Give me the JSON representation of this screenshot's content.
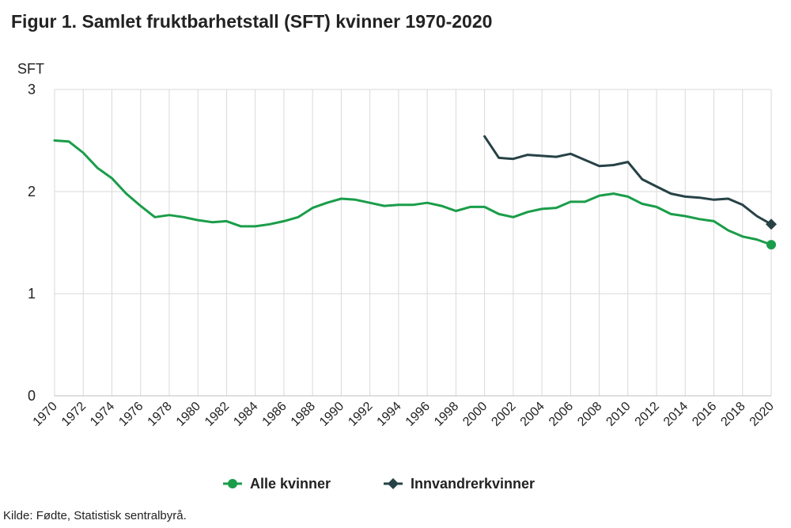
{
  "title": "Figur 1. Samlet fruktbarhetstall (SFT) kvinner 1970-2020",
  "source": "Kilde: Fødte, Statistisk sentralbyrå.",
  "colors": {
    "alle": "#1a9d49",
    "innvandrer": "#274247",
    "grid": "#d9d9d9"
  },
  "chart_data": {
    "type": "line",
    "title": "Figur 1. Samlet fruktbarhetstall (SFT) kvinner 1970-2020",
    "ylabel": "SFT",
    "xlabel": "",
    "ylim": [
      0,
      3
    ],
    "yticks": [
      0,
      1,
      2,
      3
    ],
    "xlim": [
      1970,
      2020
    ],
    "xticks": [
      1970,
      1972,
      1974,
      1976,
      1978,
      1980,
      1982,
      1984,
      1986,
      1988,
      1990,
      1992,
      1994,
      1996,
      1998,
      2000,
      2002,
      2004,
      2006,
      2008,
      2010,
      2012,
      2014,
      2016,
      2018,
      2020
    ],
    "grid": true,
    "legend": "bottom",
    "series": [
      {
        "name": "Alle kvinner",
        "color": "#1a9d49",
        "marker": "circle",
        "x": [
          1970,
          1971,
          1972,
          1973,
          1974,
          1975,
          1976,
          1977,
          1978,
          1979,
          1980,
          1981,
          1982,
          1983,
          1984,
          1985,
          1986,
          1987,
          1988,
          1989,
          1990,
          1991,
          1992,
          1993,
          1994,
          1995,
          1996,
          1997,
          1998,
          1999,
          2000,
          2001,
          2002,
          2003,
          2004,
          2005,
          2006,
          2007,
          2008,
          2009,
          2010,
          2011,
          2012,
          2013,
          2014,
          2015,
          2016,
          2017,
          2018,
          2019,
          2020
        ],
        "values": [
          2.5,
          2.49,
          2.38,
          2.23,
          2.13,
          1.98,
          1.86,
          1.75,
          1.77,
          1.75,
          1.72,
          1.7,
          1.71,
          1.66,
          1.66,
          1.68,
          1.71,
          1.75,
          1.84,
          1.89,
          1.93,
          1.92,
          1.89,
          1.86,
          1.87,
          1.87,
          1.89,
          1.86,
          1.81,
          1.85,
          1.85,
          1.78,
          1.75,
          1.8,
          1.83,
          1.84,
          1.9,
          1.9,
          1.96,
          1.98,
          1.95,
          1.88,
          1.85,
          1.78,
          1.76,
          1.73,
          1.71,
          1.62,
          1.56,
          1.53,
          1.48
        ]
      },
      {
        "name": "Innvandrerkvinner",
        "color": "#274247",
        "marker": "diamond",
        "x": [
          2000,
          2001,
          2002,
          2003,
          2004,
          2005,
          2006,
          2007,
          2008,
          2009,
          2010,
          2011,
          2012,
          2013,
          2014,
          2015,
          2016,
          2017,
          2018,
          2019,
          2020
        ],
        "values": [
          2.54,
          2.33,
          2.32,
          2.36,
          2.35,
          2.34,
          2.37,
          2.31,
          2.25,
          2.26,
          2.29,
          2.12,
          2.05,
          1.98,
          1.95,
          1.94,
          1.92,
          1.93,
          1.87,
          1.76,
          1.68
        ]
      }
    ]
  }
}
